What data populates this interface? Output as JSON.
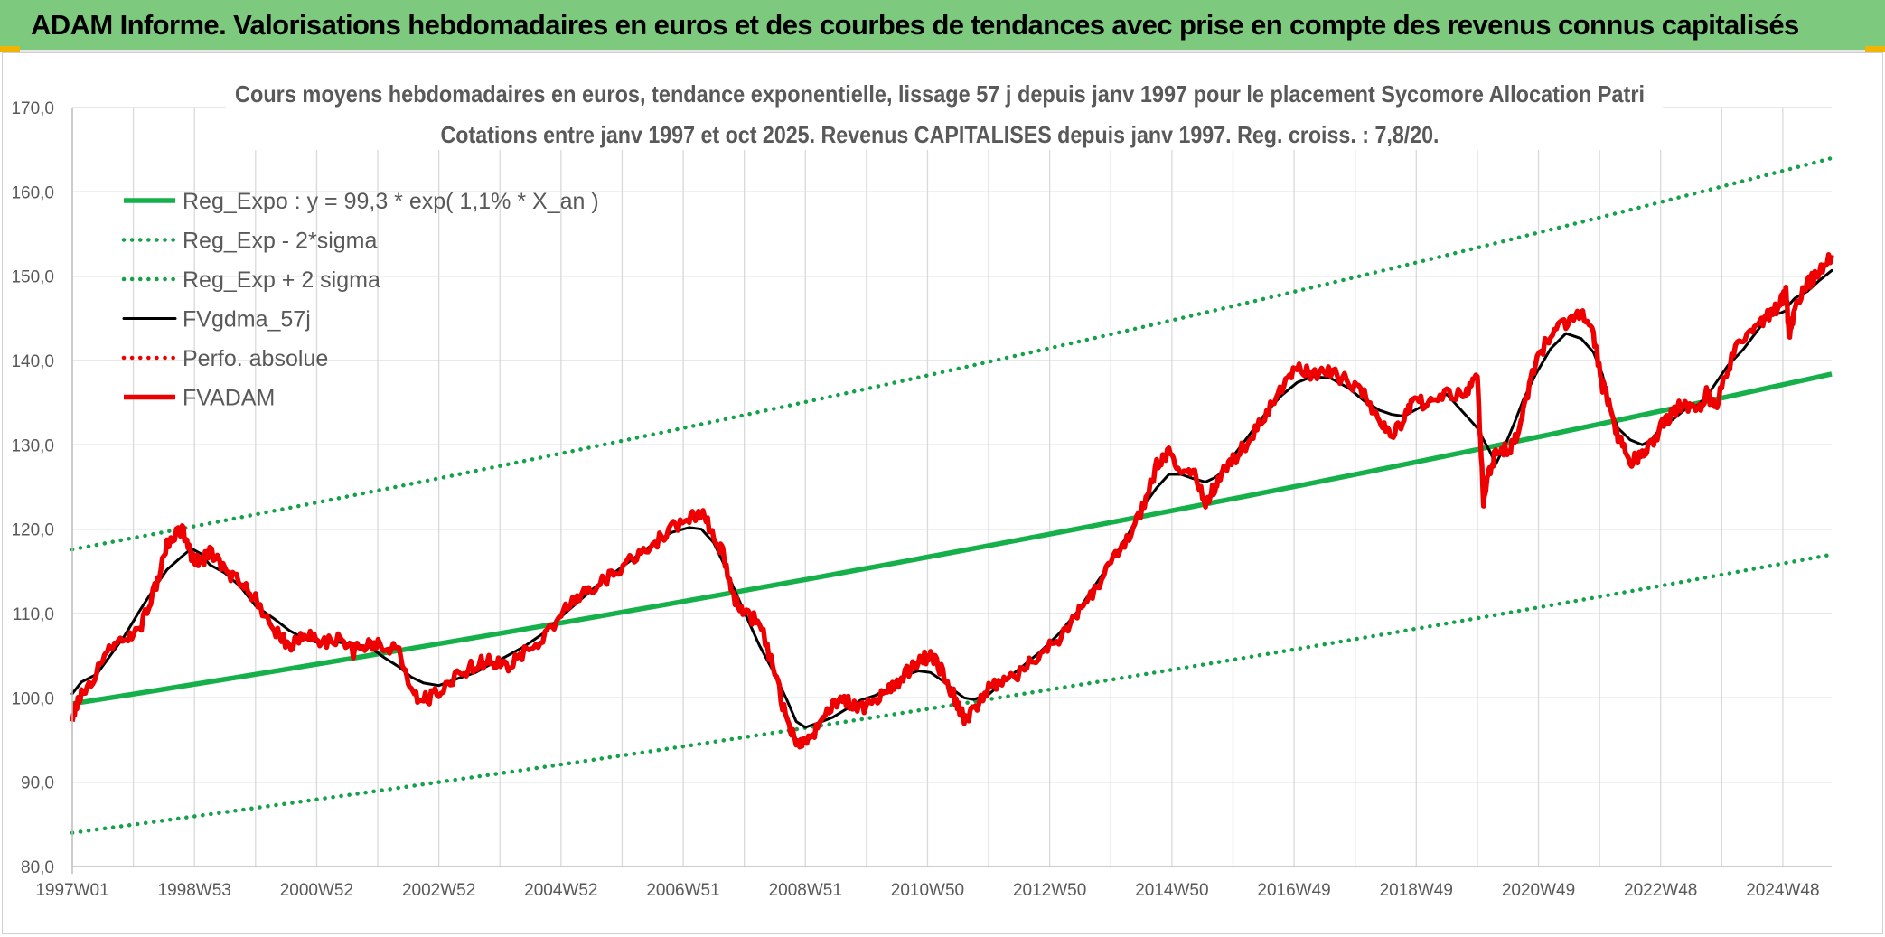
{
  "header": {
    "title": "ADAM Informe. Valorisations hebdomadaires en euros et des courbes de tendances avec prise en compte des revenus connus capitalisés"
  },
  "colors": {
    "banner": "#7dc97e",
    "trend_green": "#15b04a",
    "band_green": "#15a04a",
    "price_red": "#ee0000",
    "smooth_black": "#000000",
    "grid": "#d9d9d9"
  },
  "chart_data": {
    "type": "line",
    "title": "Cours moyens hebdomadaires en euros, tendance exponentielle, lissage 57 j depuis janv 1997 pour le placement Sycomore Allocation Patri",
    "subtitle": "Cotations entre janv 1997 et oct 2025. Revenus CAPITALISES depuis janv 1997. Reg. croiss. : 7,8/20.",
    "xlabel": "",
    "ylabel": "",
    "ylim": [
      80,
      170
    ],
    "xlim": [
      1997.0,
      2025.8
    ],
    "grid": true,
    "legend_position": "top-left",
    "y_ticks": [
      "80,0",
      "90,0",
      "100,0",
      "110,0",
      "120,0",
      "130,0",
      "140,0",
      "150,0",
      "160,0",
      "170,0"
    ],
    "x_tick_labels": [
      "1997W01",
      "1998W53",
      "2000W52",
      "2002W52",
      "2004W52",
      "2006W51",
      "2008W51",
      "2010W50",
      "2012W50",
      "2014W50",
      "2016W49",
      "2018W49",
      "2020W49",
      "2022W48",
      "2024W48"
    ],
    "x_tick_years": [
      1997.0,
      1999.0,
      2001.0,
      2003.0,
      2005.0,
      2007.0,
      2009.0,
      2011.0,
      2013.0,
      2015.0,
      2017.0,
      2019.0,
      2021.0,
      2023.0,
      2025.0
    ],
    "series": [
      {
        "name": "Reg_Expo : y = 99,3 * exp( 1,1% *  X_an )",
        "style": "thick-solid",
        "color": "#15b04a",
        "x": [
          1997.0,
          2025.8
        ],
        "values": [
          99.3,
          138.4
        ]
      },
      {
        "name": "Reg_Exp - 2*sigma",
        "style": "dotted",
        "color": "#15a04a",
        "x": [
          1997.0,
          2025.8
        ],
        "values": [
          84.0,
          117.0
        ]
      },
      {
        "name": "Reg_Exp + 2 sigma",
        "style": "dotted",
        "color": "#15a04a",
        "x": [
          1997.0,
          2025.8
        ],
        "values": [
          117.6,
          164.0
        ]
      },
      {
        "name": "FVgdma_57j",
        "style": "solid",
        "color": "#000000",
        "derived_from": "FVADAM",
        "smoothing_points": 5
      },
      {
        "name": "Perfo. absolue",
        "style": "dotted",
        "color": "#ee0000",
        "x": [],
        "values": []
      },
      {
        "name": "FVADAM",
        "style": "thick-solid",
        "color": "#ee0000",
        "x": [
          1997.0,
          1997.15,
          1997.4,
          1997.6,
          1997.85,
          1998.1,
          1998.35,
          1998.55,
          1998.8,
          1998.95,
          1999.1,
          1999.25,
          1999.5,
          1999.75,
          2000.0,
          2000.3,
          2000.55,
          2000.8,
          2001.05,
          2001.35,
          2001.6,
          2001.85,
          2002.1,
          2002.35,
          2002.55,
          2002.75,
          2003.0,
          2003.3,
          2003.6,
          2003.85,
          2004.1,
          2004.4,
          2004.7,
          2005.0,
          2005.3,
          2005.6,
          2005.9,
          2006.2,
          2006.5,
          2006.8,
          2007.1,
          2007.3,
          2007.5,
          2007.65,
          2007.8,
          2008.0,
          2008.25,
          2008.5,
          2008.7,
          2008.85,
          2009.0,
          2009.2,
          2009.45,
          2009.7,
          2009.9,
          2010.15,
          2010.4,
          2010.6,
          2010.85,
          2011.05,
          2011.25,
          2011.45,
          2011.6,
          2011.75,
          2012.0,
          2012.25,
          2012.55,
          2012.85,
          2013.15,
          2013.45,
          2013.7,
          2014.0,
          2014.3,
          2014.55,
          2014.75,
          2014.95,
          2015.15,
          2015.35,
          2015.55,
          2015.7,
          2015.85,
          2016.05,
          2016.3,
          2016.55,
          2016.8,
          2017.05,
          2017.3,
          2017.6,
          2017.9,
          2018.15,
          2018.4,
          2018.6,
          2018.8,
          2018.95,
          2019.2,
          2019.5,
          2019.8,
          2020.0,
          2020.1,
          2020.2,
          2020.3,
          2020.45,
          2020.6,
          2020.75,
          2020.95,
          2021.2,
          2021.45,
          2021.7,
          2021.9,
          2022.05,
          2022.15,
          2022.3,
          2022.5,
          2022.7,
          2022.85,
          2023.0,
          2023.2,
          2023.4,
          2023.6,
          2023.75,
          2023.9,
          2024.1,
          2024.35,
          2024.6,
          2024.8,
          2024.95,
          2025.05,
          2025.1,
          2025.2,
          2025.4,
          2025.6,
          2025.8
        ],
        "values": [
          98.0,
          100.5,
          103.0,
          106.0,
          106.5,
          108.0,
          113.0,
          118.0,
          120.0,
          117.0,
          116.0,
          117.5,
          115.0,
          113.5,
          112.0,
          108.0,
          106.0,
          107.5,
          106.5,
          107.0,
          105.5,
          106.5,
          106.0,
          105.5,
          100.5,
          99.8,
          100.5,
          102.5,
          104.0,
          104.5,
          103.5,
          105.5,
          107.0,
          110.0,
          112.0,
          113.5,
          115.0,
          116.5,
          118.0,
          120.0,
          121.5,
          122.0,
          119.5,
          117.0,
          112.0,
          110.0,
          109.0,
          103.0,
          97.0,
          95.0,
          94.5,
          96.5,
          99.5,
          99.5,
          98.5,
          100.0,
          101.0,
          102.5,
          104.5,
          105.0,
          103.0,
          100.0,
          97.5,
          98.5,
          101.0,
          102.0,
          103.0,
          105.5,
          107.0,
          110.0,
          112.5,
          116.0,
          119.0,
          123.0,
          127.5,
          129.0,
          126.0,
          127.0,
          123.0,
          125.0,
          127.0,
          128.5,
          131.0,
          134.0,
          137.0,
          139.0,
          138.5,
          138.5,
          137.5,
          136.0,
          133.0,
          131.0,
          133.0,
          135.0,
          135.0,
          136.0,
          136.0,
          138.0,
          123.0,
          127.0,
          129.0,
          129.5,
          130.0,
          134.0,
          140.0,
          143.0,
          144.5,
          145.5,
          143.0,
          137.0,
          135.0,
          131.0,
          128.0,
          129.0,
          130.0,
          132.0,
          134.0,
          135.0,
          134.0,
          136.0,
          134.5,
          139.0,
          143.0,
          144.5,
          145.5,
          146.5,
          148.5,
          143.0,
          146.0,
          149.0,
          150.5,
          152.5
        ]
      }
    ]
  }
}
